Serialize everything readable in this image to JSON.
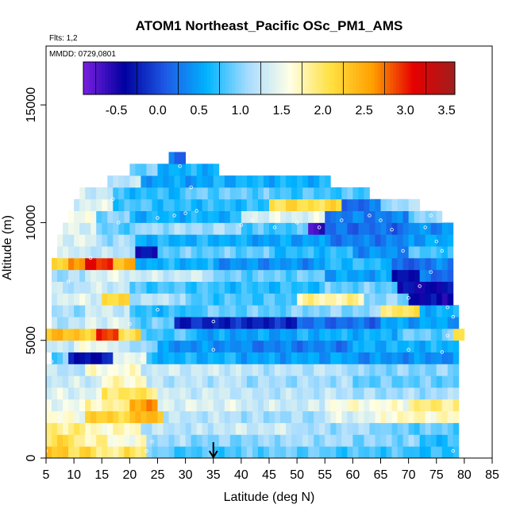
{
  "chart_data": {
    "type": "heatmap",
    "title": "ATOM1 Northeast_Pacific OSc_PM1_AMS",
    "annotations": [
      "Flts: 1,2",
      "MMDD: 0729,0801"
    ],
    "xlabel": "Latitude (deg N)",
    "ylabel": "Altitude (m)",
    "xlim": [
      5,
      85
    ],
    "ylim": [
      0,
      17500
    ],
    "xticks": [
      5,
      10,
      15,
      20,
      25,
      30,
      35,
      40,
      45,
      50,
      55,
      60,
      65,
      70,
      75,
      80,
      85
    ],
    "yticks": [
      0,
      5000,
      10000,
      15000
    ],
    "grid": false,
    "colorbar": {
      "placement": "top-inside",
      "range": [
        -0.9,
        3.6
      ],
      "ticks": [
        -0.5,
        0.0,
        0.5,
        1.0,
        1.5,
        2.0,
        2.5,
        3.0,
        3.5
      ],
      "tick_labels": [
        "-0.5",
        "0.0",
        "0.5",
        "1.0",
        "1.5",
        "2.0",
        "2.5",
        "3.0",
        "3.5"
      ],
      "colors": [
        "#7a1fe0",
        "#0000a0",
        "#1e5ae6",
        "#00b4ff",
        "#a8dcff",
        "#ffffe6",
        "#ffe040",
        "#ffa000",
        "#e60000",
        "#a01e1e"
      ]
    },
    "marker": {
      "x": 35,
      "y": 0,
      "symbol": "down-arrow"
    },
    "cell": {
      "dx": 1,
      "dy": 500
    },
    "rows": [
      {
        "y": 250,
        "x0": 5,
        "x1": 79,
        "segments": [
          [
            5,
            9,
            2.3
          ],
          [
            9,
            14,
            2.1
          ],
          [
            14,
            19,
            1.9
          ],
          [
            19,
            23,
            2.0
          ],
          [
            23,
            26,
            1.0
          ],
          [
            26,
            40,
            0.8
          ],
          [
            40,
            55,
            0.9
          ],
          [
            55,
            70,
            0.8
          ],
          [
            70,
            79,
            0.7
          ]
        ]
      },
      {
        "y": 750,
        "x0": 5,
        "x1": 79,
        "segments": [
          [
            5,
            10,
            2.1
          ],
          [
            10,
            16,
            1.8
          ],
          [
            16,
            23,
            1.6
          ],
          [
            23,
            30,
            1.1
          ],
          [
            30,
            45,
            1.0
          ],
          [
            45,
            60,
            1.1
          ],
          [
            60,
            72,
            1.0
          ],
          [
            72,
            79,
            0.7
          ]
        ]
      },
      {
        "y": 1250,
        "x0": 5,
        "x1": 79,
        "segments": [
          [
            5,
            12,
            1.9
          ],
          [
            12,
            22,
            1.7
          ],
          [
            22,
            35,
            1.2
          ],
          [
            35,
            50,
            1.3
          ],
          [
            50,
            65,
            1.1
          ],
          [
            65,
            79,
            0.9
          ]
        ]
      },
      {
        "y": 1750,
        "x0": 5,
        "x1": 79,
        "segments": [
          [
            5,
            12,
            1.6
          ],
          [
            12,
            21,
            2.2
          ],
          [
            21,
            26,
            2.4
          ],
          [
            26,
            40,
            1.2
          ],
          [
            40,
            55,
            1.1
          ],
          [
            55,
            65,
            1.4
          ],
          [
            65,
            79,
            1.7
          ]
        ]
      },
      {
        "y": 2250,
        "x0": 5,
        "x1": 79,
        "segments": [
          [
            5,
            12,
            1.5
          ],
          [
            12,
            20,
            1.8
          ],
          [
            20,
            25,
            2.6
          ],
          [
            25,
            40,
            1.4
          ],
          [
            40,
            55,
            1.3
          ],
          [
            55,
            70,
            1.6
          ],
          [
            70,
            79,
            1.9
          ]
        ]
      },
      {
        "y": 2750,
        "x0": 5,
        "x1": 79,
        "segments": [
          [
            5,
            15,
            1.4
          ],
          [
            15,
            25,
            2.0
          ],
          [
            25,
            40,
            1.3
          ],
          [
            40,
            60,
            1.2
          ],
          [
            60,
            79,
            1.1
          ]
        ]
      },
      {
        "y": 3250,
        "x0": 5,
        "x1": 79,
        "segments": [
          [
            5,
            15,
            1.3
          ],
          [
            15,
            23,
            1.7
          ],
          [
            23,
            40,
            1.2
          ],
          [
            40,
            60,
            1.1
          ],
          [
            60,
            79,
            0.9
          ]
        ]
      },
      {
        "y": 3750,
        "x0": 5,
        "x1": 79,
        "segments": [
          [
            5,
            12,
            1.2
          ],
          [
            12,
            22,
            1.6
          ],
          [
            22,
            40,
            1.3
          ],
          [
            40,
            60,
            1.2
          ],
          [
            60,
            79,
            1.0
          ]
        ]
      },
      {
        "y": 4250,
        "x0": 6,
        "x1": 79,
        "segments": [
          [
            6,
            9,
            0.9
          ],
          [
            9,
            17,
            -0.3
          ],
          [
            17,
            23,
            1.5
          ],
          [
            23,
            40,
            0.6
          ],
          [
            40,
            60,
            0.5
          ],
          [
            60,
            79,
            0.4
          ]
        ]
      },
      {
        "y": 4750,
        "x0": 5,
        "x1": 79,
        "segments": [
          [
            5,
            10,
            1.3
          ],
          [
            10,
            18,
            1.5
          ],
          [
            18,
            25,
            1.1
          ],
          [
            25,
            40,
            0.4
          ],
          [
            40,
            60,
            0.3
          ],
          [
            60,
            79,
            0.6
          ]
        ]
      },
      {
        "y": 5250,
        "x0": 5,
        "x1": 80,
        "segments": [
          [
            5,
            8,
            2.4
          ],
          [
            8,
            14,
            2.3
          ],
          [
            14,
            18,
            2.9
          ],
          [
            18,
            22,
            2.1
          ],
          [
            22,
            32,
            0.8
          ],
          [
            32,
            50,
            0.5
          ],
          [
            50,
            68,
            0.6
          ],
          [
            68,
            78,
            0.9
          ],
          [
            78,
            80,
            2.1
          ]
        ]
      },
      {
        "y": 5750,
        "x0": 6,
        "x1": 79,
        "segments": [
          [
            6,
            12,
            1.2
          ],
          [
            12,
            20,
            1.4
          ],
          [
            20,
            28,
            0.9
          ],
          [
            28,
            50,
            -0.2
          ],
          [
            50,
            65,
            0.2
          ],
          [
            65,
            79,
            0.5
          ]
        ]
      },
      {
        "y": 6250,
        "x0": 6,
        "x1": 79,
        "segments": [
          [
            6,
            12,
            1.1
          ],
          [
            12,
            20,
            1.3
          ],
          [
            20,
            32,
            0.7
          ],
          [
            32,
            50,
            0.9
          ],
          [
            50,
            65,
            1.0
          ],
          [
            65,
            72,
            2.0
          ],
          [
            72,
            79,
            0.6
          ]
        ]
      },
      {
        "y": 6750,
        "x0": 6,
        "x1": 78,
        "segments": [
          [
            6,
            15,
            1.4
          ],
          [
            15,
            20,
            2.1
          ],
          [
            20,
            30,
            1.2
          ],
          [
            30,
            50,
            0.8
          ],
          [
            50,
            62,
            1.8
          ],
          [
            62,
            70,
            1.0
          ],
          [
            70,
            78,
            -0.4
          ]
        ]
      },
      {
        "y": 7250,
        "x0": 6,
        "x1": 78,
        "segments": [
          [
            6,
            12,
            1.2
          ],
          [
            12,
            20,
            1.3
          ],
          [
            20,
            35,
            0.8
          ],
          [
            35,
            55,
            0.7
          ],
          [
            55,
            68,
            0.9
          ],
          [
            68,
            78,
            -0.4
          ]
        ]
      },
      {
        "y": 7750,
        "x0": 6,
        "x1": 78,
        "segments": [
          [
            6,
            12,
            1.1
          ],
          [
            12,
            21,
            1.4
          ],
          [
            21,
            35,
            1.3
          ],
          [
            35,
            55,
            0.9
          ],
          [
            55,
            67,
            0.5
          ],
          [
            67,
            72,
            -0.3
          ],
          [
            72,
            78,
            0.2
          ]
        ]
      },
      {
        "y": 8250,
        "x0": 6,
        "x1": 78,
        "segments": [
          [
            6,
            9,
            2.2
          ],
          [
            9,
            12,
            2.7
          ],
          [
            12,
            17,
            3.0
          ],
          [
            17,
            21,
            2.4
          ],
          [
            21,
            35,
            0.6
          ],
          [
            35,
            55,
            0.4
          ],
          [
            55,
            67,
            0.7
          ],
          [
            67,
            72,
            0.1
          ],
          [
            72,
            78,
            0.3
          ]
        ]
      },
      {
        "y": 8750,
        "x0": 7,
        "x1": 78,
        "segments": [
          [
            7,
            14,
            1.3
          ],
          [
            14,
            21,
            1.2
          ],
          [
            21,
            25,
            -0.4
          ],
          [
            25,
            45,
            0.9
          ],
          [
            45,
            60,
            0.7
          ],
          [
            60,
            70,
            0.4
          ],
          [
            70,
            78,
            0.8
          ]
        ]
      },
      {
        "y": 9250,
        "x0": 7,
        "x1": 78,
        "segments": [
          [
            7,
            14,
            1.4
          ],
          [
            14,
            21,
            1.1
          ],
          [
            21,
            40,
            0.6
          ],
          [
            40,
            55,
            0.5
          ],
          [
            55,
            70,
            0.3
          ],
          [
            70,
            78,
            0.5
          ]
        ]
      },
      {
        "y": 9750,
        "x0": 8,
        "x1": 78,
        "segments": [
          [
            8,
            14,
            1.4
          ],
          [
            14,
            22,
            0.9
          ],
          [
            22,
            40,
            1.1
          ],
          [
            40,
            52,
            0.8
          ],
          [
            52,
            55,
            -0.6
          ],
          [
            55,
            70,
            0.2
          ],
          [
            70,
            78,
            0.4
          ]
        ]
      },
      {
        "y": 10250,
        "x0": 9,
        "x1": 76,
        "segments": [
          [
            9,
            14,
            1.5
          ],
          [
            14,
            20,
            1.0
          ],
          [
            20,
            40,
            0.6
          ],
          [
            40,
            55,
            1.4
          ],
          [
            55,
            70,
            0.3
          ],
          [
            70,
            76,
            1.0
          ]
        ]
      },
      {
        "y": 10750,
        "x0": 10,
        "x1": 72,
        "segments": [
          [
            10,
            17,
            1.4
          ],
          [
            17,
            25,
            0.8
          ],
          [
            25,
            45,
            0.7
          ],
          [
            45,
            58,
            2.1
          ],
          [
            58,
            65,
            0.2
          ],
          [
            65,
            72,
            1.1
          ]
        ]
      },
      {
        "y": 11250,
        "x0": 11,
        "x1": 63,
        "segments": [
          [
            11,
            17,
            1.3
          ],
          [
            17,
            30,
            0.7
          ],
          [
            30,
            45,
            0.9
          ],
          [
            45,
            63,
            0.8
          ]
        ]
      },
      {
        "y": 11750,
        "x0": 16,
        "x1": 56,
        "segments": [
          [
            16,
            22,
            1.2
          ],
          [
            22,
            35,
            0.5
          ],
          [
            35,
            56,
            0.6
          ]
        ]
      },
      {
        "y": 12250,
        "x0": 20,
        "x1": 36,
        "segments": [
          [
            20,
            25,
            0.9
          ],
          [
            25,
            36,
            0.6
          ]
        ]
      },
      {
        "y": 12750,
        "x0": 27,
        "x1": 30,
        "segments": [
          [
            27,
            30,
            0.2
          ]
        ]
      }
    ],
    "points": [
      [
        5,
        300
      ],
      [
        6,
        4100
      ],
      [
        9,
        7500
      ],
      [
        13,
        8500
      ],
      [
        18,
        10000
      ],
      [
        20,
        5700
      ],
      [
        22,
        4200
      ],
      [
        23,
        300
      ],
      [
        24,
        700
      ],
      [
        25,
        6300
      ],
      [
        30,
        10400
      ],
      [
        32,
        10500
      ],
      [
        35,
        4600
      ],
      [
        35,
        5800
      ],
      [
        40,
        9900
      ],
      [
        42,
        10100
      ],
      [
        46,
        9800
      ],
      [
        50,
        10000
      ],
      [
        54,
        9800
      ],
      [
        58,
        10100
      ],
      [
        63,
        10300
      ],
      [
        65,
        10100
      ],
      [
        67,
        9700
      ],
      [
        69,
        8800
      ],
      [
        70,
        4600
      ],
      [
        70,
        6800
      ],
      [
        72,
        7300
      ],
      [
        73,
        9800
      ],
      [
        74,
        10300
      ],
      [
        74,
        7900
      ],
      [
        75,
        9200
      ],
      [
        76,
        8800
      ],
      [
        76,
        4500
      ],
      [
        77,
        5200
      ],
      [
        77,
        6400
      ],
      [
        78,
        300
      ],
      [
        78,
        6000
      ],
      [
        29,
        12400
      ],
      [
        31,
        11500
      ],
      [
        17,
        11000
      ],
      [
        25,
        10200
      ],
      [
        28,
        10300
      ]
    ]
  }
}
